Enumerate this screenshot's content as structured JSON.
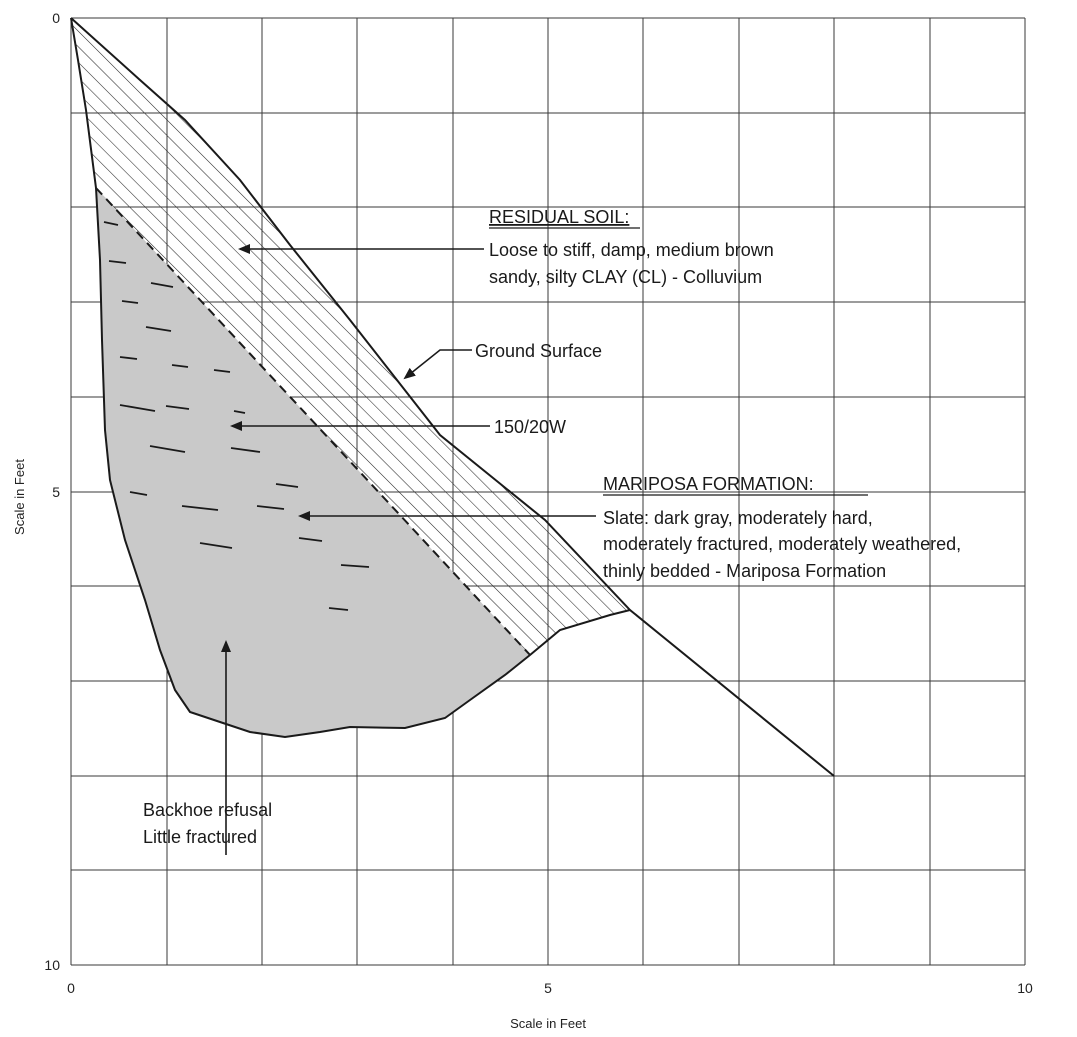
{
  "axes": {
    "x_title": "Scale in Feet",
    "y_title": "Scale in Feet",
    "x_ticks": [
      "0",
      "5",
      "10"
    ],
    "y_ticks": [
      "0",
      "5",
      "10"
    ]
  },
  "labels": {
    "residual_title": "RESIDUAL SOIL:",
    "residual_line1": "Loose to stiff, damp, medium brown",
    "residual_line2": "sandy, silty CLAY (CL) - Colluvium",
    "ground_surface": "Ground Surface",
    "attitude": "150/20W",
    "mariposa_title": "MARIPOSA FORMATION:",
    "mariposa_line1": "Slate: dark gray, moderately hard,",
    "mariposa_line2": "moderately fractured, moderately weathered,",
    "mariposa_line3": "thinly bedded - Mariposa Formation",
    "refusal_line1": "Backhoe refusal",
    "refusal_line2": "Little fractured"
  },
  "colors": {
    "rock_fill": "#c9c9c9",
    "line": "#1a1a1a",
    "grid": "#3a3a3a"
  },
  "icons": {
    "arrow": "arrowhead"
  }
}
